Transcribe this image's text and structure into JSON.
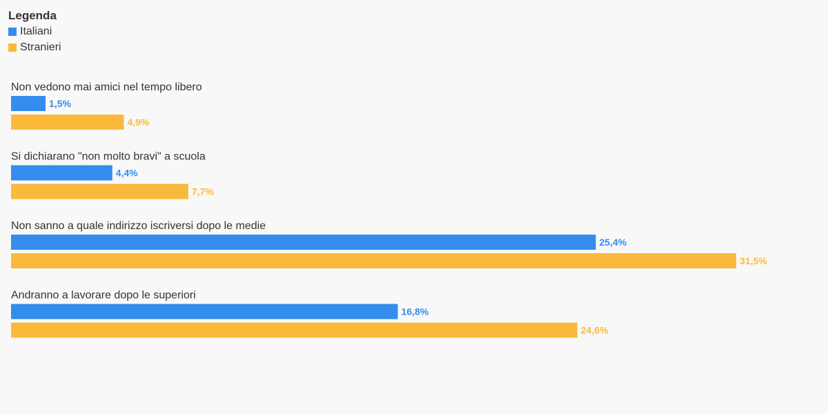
{
  "legend": {
    "title": "Legenda",
    "items": [
      {
        "label": "Italiani",
        "color": "#348ced"
      },
      {
        "label": "Stranieri",
        "color": "#fbb93b"
      }
    ]
  },
  "chart_data": {
    "type": "bar",
    "orientation": "horizontal",
    "categories": [
      "Non vedono mai amici nel tempo libero",
      "Si dichiarano \"non molto bravi\" a scuola",
      "Non sanno a quale indirizzo iscriversi dopo le medie",
      "Andranno a lavorare dopo le superiori"
    ],
    "series": [
      {
        "name": "Italiani",
        "color": "#348ced",
        "values": [
          1.5,
          4.4,
          25.4,
          16.8
        ],
        "labels": [
          "1,5%",
          "4,4%",
          "25,4%",
          "16,8%"
        ]
      },
      {
        "name": "Stranieri",
        "color": "#fbb93b",
        "values": [
          4.9,
          7.7,
          31.5,
          24.6
        ],
        "labels": [
          "4,9%",
          "7,7%",
          "31,5%",
          "24,6%"
        ]
      }
    ],
    "legend_position": "top-left",
    "grid": false
  }
}
